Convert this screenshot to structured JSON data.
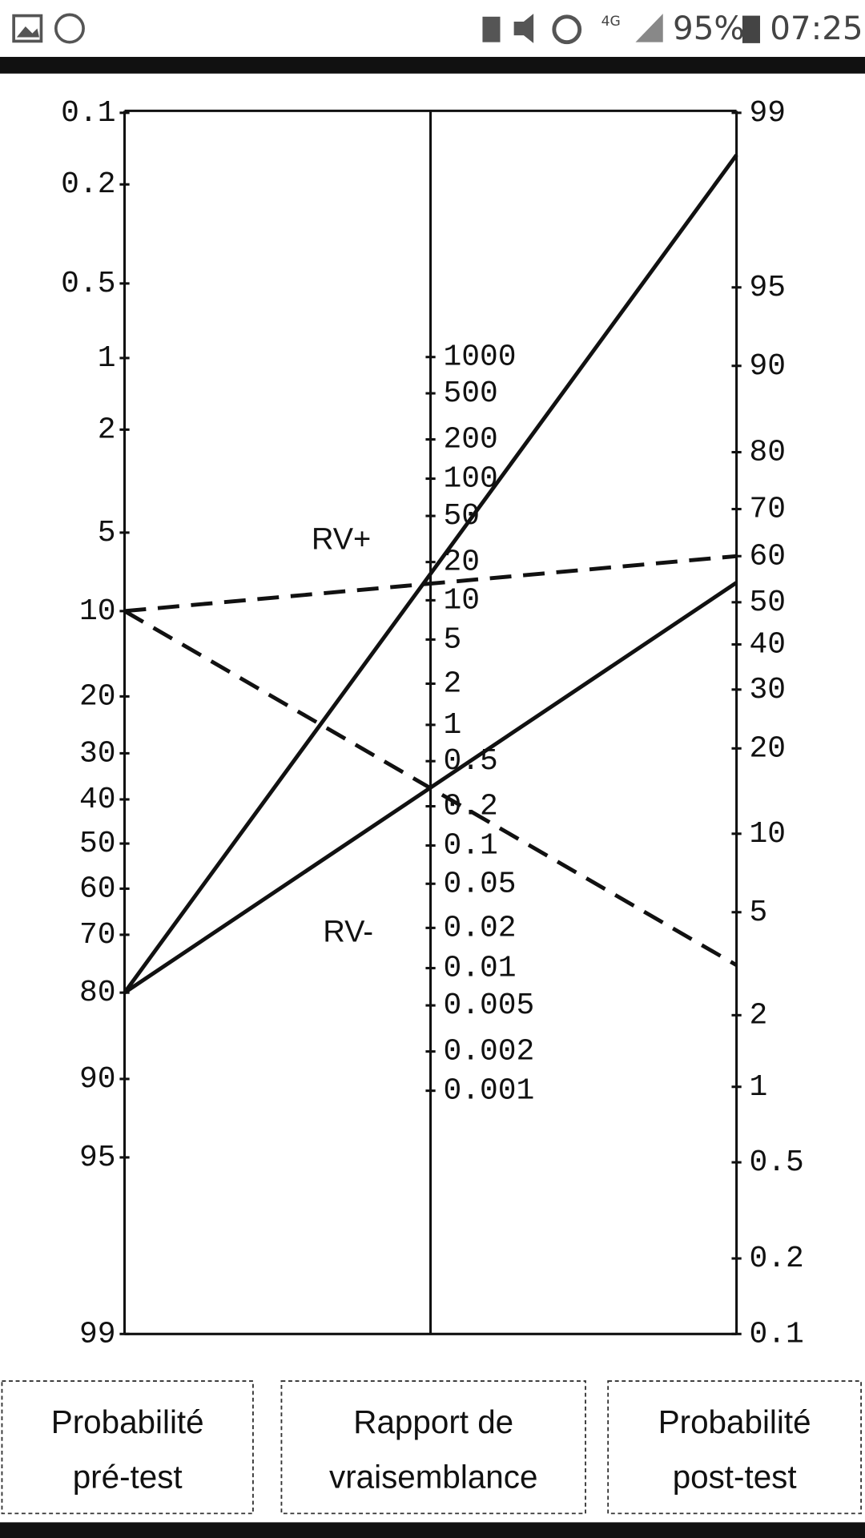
{
  "status_bar": {
    "battery": "95%",
    "time": "07:25",
    "network": "4G"
  },
  "nomogram": {
    "left_axis": {
      "ticks": [
        "0.1",
        "0.2",
        "0.5",
        "1",
        "2",
        "5",
        "10",
        "20",
        "30",
        "40",
        "50",
        "60",
        "70",
        "80",
        "90",
        "95",
        "99"
      ]
    },
    "middle_axis": {
      "ticks": [
        "1000",
        "500",
        "200",
        "100",
        "50",
        "20",
        "10",
        "5",
        "2",
        "1",
        "0.5",
        "0.2",
        "0.1",
        "0.05",
        "0.02",
        "0.01",
        "0.005",
        "0.002",
        "0.001"
      ]
    },
    "right_axis": {
      "ticks": [
        "99",
        "95",
        "90",
        "80",
        "70",
        "60",
        "50",
        "40",
        "30",
        "20",
        "10",
        "5",
        "2",
        "1",
        "0.5",
        "0.2",
        "0.1"
      ]
    },
    "annotations": [
      "RV+",
      "RV-"
    ]
  },
  "captions": [
    [
      "Probabilité",
      "pré-test"
    ],
    [
      "Rapport de",
      "vraisemblance"
    ],
    [
      "Probabilité",
      "post-test"
    ]
  ]
}
